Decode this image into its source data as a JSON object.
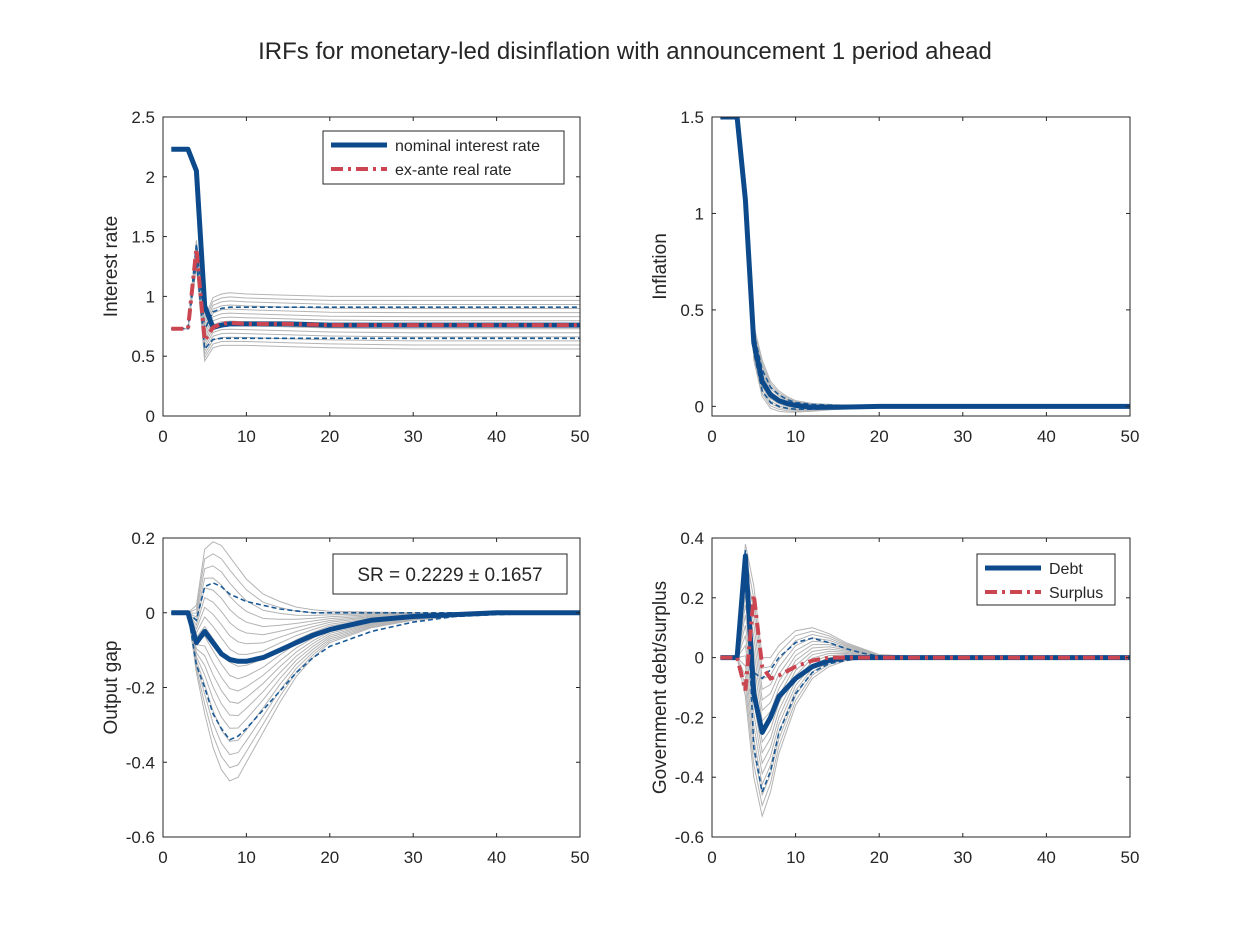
{
  "figure": {
    "title": "IRFs for monetary-led disinflation with announcement 1 period ahead"
  },
  "colors": {
    "blue": "#0c4a8c",
    "red": "#cb4651",
    "gray": "#b4b4b4",
    "band": "#1a5a96"
  },
  "chart_data": [
    {
      "id": "interest",
      "type": "line",
      "ylabel": "Interest rate",
      "xlim": [
        0,
        50
      ],
      "ylim": [
        0,
        2.5
      ],
      "xticks": [
        0,
        10,
        20,
        30,
        40,
        50
      ],
      "yticks": [
        0,
        0.5,
        1,
        1.5,
        2,
        2.5
      ],
      "grid": false,
      "legend": "top-right",
      "series": [
        {
          "name": "nominal interest rate",
          "style": "solid",
          "color": "blue",
          "x": [
            1,
            2,
            3,
            4,
            5,
            6,
            7,
            8,
            10,
            15,
            20,
            30,
            40,
            50
          ],
          "y": [
            2.23,
            2.23,
            2.23,
            2.05,
            0.92,
            0.74,
            0.76,
            0.77,
            0.77,
            0.77,
            0.76,
            0.76,
            0.76,
            0.76
          ]
        },
        {
          "name": "ex-ante real rate",
          "style": "dashdot",
          "color": "red",
          "x": [
            1,
            2,
            3,
            4,
            5,
            6,
            7,
            8,
            10,
            15,
            20,
            30,
            40,
            50
          ],
          "y": [
            0.73,
            0.73,
            0.73,
            1.4,
            0.63,
            0.74,
            0.77,
            0.78,
            0.77,
            0.77,
            0.76,
            0.76,
            0.76,
            0.76
          ]
        },
        {
          "style": "band",
          "color": "band",
          "x": [
            1,
            2,
            3,
            4,
            5,
            6,
            7,
            8,
            10,
            15,
            20,
            30,
            40,
            50
          ],
          "y": [
            0.73,
            0.73,
            0.73,
            1.44,
            0.72,
            0.87,
            0.9,
            0.91,
            0.91,
            0.91,
            0.91,
            0.91,
            0.91,
            0.91
          ]
        },
        {
          "style": "band",
          "color": "band",
          "x": [
            1,
            2,
            3,
            4,
            5,
            6,
            7,
            8,
            10,
            15,
            20,
            30,
            40,
            50
          ],
          "y": [
            0.73,
            0.73,
            0.73,
            1.3,
            0.56,
            0.64,
            0.65,
            0.65,
            0.65,
            0.65,
            0.65,
            0.65,
            0.65,
            0.65
          ]
        }
      ],
      "gray_envelope": {
        "x": [
          1,
          2,
          3,
          4,
          5,
          6,
          7,
          8,
          10,
          15,
          20,
          30,
          40,
          50
        ],
        "upper": [
          0.73,
          0.73,
          0.73,
          1.47,
          0.82,
          0.99,
          1.02,
          1.03,
          1.02,
          1.01,
          1.0,
          1.0,
          1.0,
          1.0
        ],
        "lower": [
          0.73,
          0.73,
          0.73,
          1.25,
          0.46,
          0.57,
          0.59,
          0.59,
          0.59,
          0.58,
          0.57,
          0.56,
          0.56,
          0.56
        ],
        "count": 14
      }
    },
    {
      "id": "inflation",
      "type": "line",
      "ylabel": "Inflation",
      "xlim": [
        0,
        50
      ],
      "ylim": [
        -0.05,
        1.5
      ],
      "xticks": [
        0,
        10,
        20,
        30,
        40,
        50
      ],
      "yticks": [
        0,
        0.5,
        1,
        1.5
      ],
      "grid": false,
      "series": [
        {
          "style": "solid",
          "color": "blue",
          "x": [
            1,
            2,
            3,
            4,
            5,
            6,
            7,
            8,
            9,
            10,
            12,
            15,
            20,
            30,
            40,
            50
          ],
          "y": [
            1.5,
            1.5,
            1.5,
            1.07,
            0.33,
            0.13,
            0.06,
            0.03,
            0.015,
            0.005,
            -0.005,
            -0.005,
            0.0,
            0.0,
            0.0,
            0.0
          ]
        },
        {
          "style": "band",
          "color": "band",
          "x": [
            1,
            2,
            3,
            4,
            5,
            6,
            7,
            8,
            9,
            10,
            12,
            15,
            20,
            30,
            40,
            50
          ],
          "y": [
            1.5,
            1.5,
            1.5,
            1.07,
            0.38,
            0.19,
            0.1,
            0.06,
            0.035,
            0.02,
            0.01,
            0.005,
            0.0,
            0.0,
            0.0,
            0.0
          ]
        },
        {
          "style": "band",
          "color": "band",
          "x": [
            1,
            2,
            3,
            4,
            5,
            6,
            7,
            8,
            9,
            10,
            12,
            15,
            20,
            30,
            40,
            50
          ],
          "y": [
            1.5,
            1.5,
            1.5,
            1.07,
            0.28,
            0.08,
            0.02,
            0.0,
            -0.01,
            -0.015,
            -0.015,
            -0.01,
            0.0,
            0.0,
            0.0,
            0.0
          ]
        }
      ],
      "gray_envelope": {
        "x": [
          1,
          2,
          3,
          4,
          5,
          6,
          7,
          8,
          9,
          10,
          12,
          15,
          20,
          30,
          40,
          50
        ],
        "upper": [
          1.5,
          1.5,
          1.5,
          1.07,
          0.42,
          0.24,
          0.13,
          0.08,
          0.05,
          0.03,
          0.015,
          0.008,
          0.003,
          0.0,
          0.0,
          0.0
        ],
        "lower": [
          1.5,
          1.5,
          1.5,
          1.07,
          0.24,
          0.05,
          -0.01,
          -0.025,
          -0.03,
          -0.03,
          -0.025,
          -0.015,
          -0.005,
          0.0,
          0.0,
          0.0
        ],
        "count": 12
      }
    },
    {
      "id": "output",
      "type": "line",
      "ylabel": "Output gap",
      "xlim": [
        0,
        50
      ],
      "ylim": [
        -0.6,
        0.2
      ],
      "xticks": [
        0,
        10,
        20,
        30,
        40,
        50
      ],
      "yticks": [
        -0.6,
        -0.4,
        -0.2,
        0,
        0.2
      ],
      "grid": false,
      "annotation": "SR = 0.2229 ± 0.1657",
      "series": [
        {
          "style": "solid",
          "color": "blue",
          "x": [
            1,
            2,
            3,
            4,
            5,
            6,
            7,
            8,
            9,
            10,
            12,
            14,
            16,
            18,
            20,
            25,
            30,
            35,
            40,
            50
          ],
          "y": [
            0.0,
            0.0,
            0.0,
            -0.08,
            -0.05,
            -0.08,
            -0.11,
            -0.125,
            -0.13,
            -0.13,
            -0.12,
            -0.1,
            -0.08,
            -0.06,
            -0.045,
            -0.02,
            -0.01,
            -0.005,
            0.0,
            0.0
          ]
        },
        {
          "style": "band",
          "color": "band",
          "x": [
            1,
            2,
            3,
            4,
            5,
            6,
            7,
            8,
            10,
            12,
            14,
            16,
            18,
            20,
            25,
            30,
            35,
            40,
            50
          ],
          "y": [
            0.0,
            0.0,
            0.0,
            -0.02,
            0.07,
            0.08,
            0.07,
            0.05,
            0.03,
            0.02,
            0.01,
            0.005,
            0.0,
            0.0,
            0.0,
            0.0,
            0.0,
            0.0,
            0.0
          ]
        },
        {
          "style": "band",
          "color": "band",
          "x": [
            1,
            2,
            3,
            4,
            5,
            6,
            7,
            8,
            9,
            10,
            12,
            14,
            16,
            18,
            20,
            25,
            30,
            35,
            40,
            50
          ],
          "y": [
            0.0,
            0.0,
            0.0,
            -0.14,
            -0.2,
            -0.27,
            -0.31,
            -0.34,
            -0.33,
            -0.31,
            -0.26,
            -0.21,
            -0.16,
            -0.12,
            -0.09,
            -0.05,
            -0.025,
            -0.01,
            -0.005,
            0.0
          ]
        }
      ],
      "gray_envelope": {
        "x": [
          1,
          2,
          3,
          4,
          5,
          6,
          7,
          8,
          9,
          10,
          12,
          14,
          16,
          18,
          20,
          25,
          30,
          35,
          40,
          50
        ],
        "upper": [
          0.0,
          0.0,
          0.0,
          0.02,
          0.17,
          0.19,
          0.18,
          0.15,
          0.12,
          0.09,
          0.05,
          0.03,
          0.015,
          0.008,
          0.004,
          0.002,
          0.0,
          0.0,
          0.0,
          0.0
        ],
        "lower": [
          0.0,
          0.0,
          0.0,
          -0.16,
          -0.27,
          -0.36,
          -0.42,
          -0.45,
          -0.44,
          -0.4,
          -0.32,
          -0.24,
          -0.17,
          -0.12,
          -0.08,
          -0.04,
          -0.02,
          -0.01,
          -0.005,
          0.0
        ],
        "count": 18
      }
    },
    {
      "id": "debt",
      "type": "line",
      "ylabel": "Government debt/surplus",
      "xlim": [
        0,
        50
      ],
      "ylim": [
        -0.6,
        0.4
      ],
      "xticks": [
        0,
        10,
        20,
        30,
        40,
        50
      ],
      "yticks": [
        -0.6,
        -0.4,
        -0.2,
        0,
        0.2,
        0.4
      ],
      "grid": false,
      "legend": "top-right",
      "series": [
        {
          "name": "Debt",
          "style": "solid",
          "color": "blue",
          "x": [
            1,
            2,
            3,
            4,
            5,
            6,
            7,
            8,
            10,
            12,
            14,
            16,
            18,
            20,
            25,
            30,
            40,
            50
          ],
          "y": [
            0.0,
            0.0,
            0.0,
            0.34,
            -0.12,
            -0.25,
            -0.2,
            -0.13,
            -0.07,
            -0.03,
            -0.01,
            0.0,
            0.0,
            0.0,
            0.0,
            0.0,
            0.0,
            0.0
          ]
        },
        {
          "name": "Surplus",
          "style": "dashdot",
          "color": "red",
          "x": [
            1,
            2,
            3,
            4,
            5,
            6,
            7,
            8,
            10,
            12,
            14,
            16,
            18,
            20,
            25,
            30,
            40,
            50
          ],
          "y": [
            0.0,
            0.0,
            0.0,
            -0.11,
            0.21,
            -0.03,
            -0.07,
            -0.06,
            -0.03,
            -0.01,
            0.0,
            0.0,
            0.0,
            0.0,
            0.0,
            0.0,
            0.0,
            0.0
          ]
        },
        {
          "style": "band",
          "color": "band",
          "x": [
            1,
            2,
            3,
            4,
            5,
            6,
            7,
            8,
            10,
            12,
            14,
            16,
            18,
            20,
            25,
            30,
            40,
            50
          ],
          "y": [
            0.0,
            0.0,
            0.0,
            0.36,
            -0.05,
            -0.07,
            -0.04,
            0.0,
            0.05,
            0.065,
            0.05,
            0.03,
            0.015,
            0.005,
            0.0,
            0.0,
            0.0,
            0.0
          ]
        },
        {
          "style": "band",
          "color": "band",
          "x": [
            1,
            2,
            3,
            4,
            5,
            6,
            7,
            8,
            10,
            12,
            14,
            16,
            18,
            20,
            25,
            30,
            40,
            50
          ],
          "y": [
            0.0,
            0.0,
            0.0,
            0.32,
            -0.3,
            -0.45,
            -0.38,
            -0.25,
            -0.12,
            -0.05,
            -0.02,
            -0.01,
            0.0,
            0.0,
            0.0,
            0.0,
            0.0,
            0.0
          ]
        }
      ],
      "gray_envelope": {
        "x": [
          1,
          2,
          3,
          4,
          5,
          6,
          7,
          8,
          10,
          12,
          14,
          16,
          18,
          20,
          25,
          30,
          40,
          50
        ],
        "upper": [
          0.0,
          0.0,
          0.0,
          0.38,
          0.24,
          0.0,
          0.0,
          0.04,
          0.09,
          0.1,
          0.08,
          0.05,
          0.03,
          0.01,
          0.003,
          0.0,
          0.0,
          0.0
        ],
        "lower": [
          0.0,
          0.0,
          0.0,
          -0.13,
          -0.4,
          -0.53,
          -0.45,
          -0.32,
          -0.16,
          -0.07,
          -0.03,
          -0.01,
          -0.005,
          0.0,
          0.0,
          0.0,
          0.0,
          0.0
        ],
        "count": 16
      }
    }
  ]
}
